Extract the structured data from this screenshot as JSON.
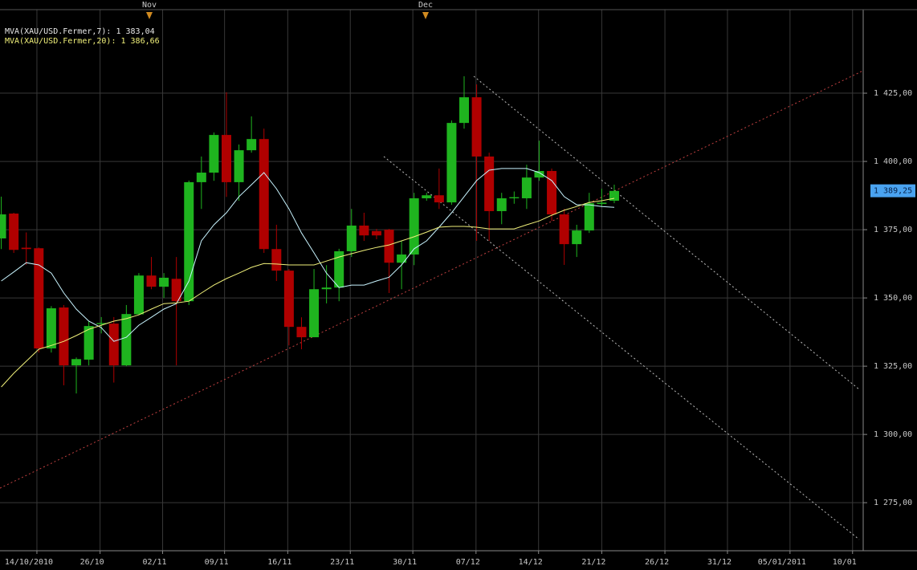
{
  "chart_data": {
    "type": "candlestick",
    "open": [
      1371.8,
      1380.9,
      1368.4,
      1368.2,
      1331.5,
      1346.5,
      1325.3,
      1327.4,
      1340.4,
      1340.6,
      1325.3,
      1344.0,
      1358.2,
      1354.1,
      1357.0,
      1348.8,
      1392.4,
      1395.9,
      1409.7,
      1392.4,
      1404.1,
      1408.2,
      1367.9,
      1360.0,
      1339.4,
      1335.6,
      1353.2,
      1353.8,
      1367.1,
      1376.5,
      1374.5,
      1375.0,
      1362.9,
      1365.9,
      1386.5,
      1387.6,
      1385.0,
      1414.1,
      1423.5,
      1401.8,
      1381.8,
      1386.5,
      1386.5,
      1394.1,
      1396.5,
      1380.6,
      1369.7,
      1374.7,
      1384.4,
      1385.6
    ],
    "high": [
      1387.1,
      1381.2,
      1374.0,
      1368.5,
      1347.0,
      1347.4,
      1328.2,
      1341.5,
      1343.0,
      1343.0,
      1347.4,
      1359.1,
      1365.0,
      1359.1,
      1365.0,
      1393.0,
      1401.8,
      1410.6,
      1425.3,
      1406.2,
      1416.5,
      1412.0,
      1376.8,
      1360.6,
      1342.9,
      1360.6,
      1362.0,
      1368.0,
      1382.6,
      1381.2,
      1375.3,
      1375.3,
      1370.9,
      1388.5,
      1388.5,
      1397.4,
      1415.0,
      1431.2,
      1428.2,
      1403.2,
      1388.5,
      1389.0,
      1398.8,
      1407.6,
      1397.4,
      1382.6,
      1376.8,
      1388.5,
      1390.0,
      1391.5
    ],
    "low": [
      1367.9,
      1366.5,
      1362.1,
      1330.0,
      1330.0,
      1318.0,
      1315.0,
      1325.3,
      1337.0,
      1319.0,
      1325.0,
      1343.8,
      1353.2,
      1350.0,
      1325.3,
      1347.4,
      1382.6,
      1392.9,
      1387.0,
      1385.6,
      1403.2,
      1366.5,
      1356.2,
      1332.6,
      1331.2,
      1335.6,
      1348.0,
      1348.8,
      1365.0,
      1370.9,
      1371.5,
      1351.8,
      1353.2,
      1362.0,
      1385.6,
      1382.6,
      1384.1,
      1412.0,
      1370.9,
      1370.9,
      1377.0,
      1384.5,
      1382.6,
      1392.9,
      1378.2,
      1362.1,
      1365.0,
      1373.8,
      1383.5,
      1384.7
    ],
    "close": [
      1380.6,
      1367.6,
      1367.9,
      1331.5,
      1346.2,
      1325.3,
      1327.6,
      1339.7,
      1340.8,
      1325.3,
      1344.1,
      1358.2,
      1354.1,
      1357.4,
      1348.8,
      1392.4,
      1395.9,
      1409.7,
      1392.4,
      1404.1,
      1408.2,
      1367.9,
      1360.0,
      1339.4,
      1335.6,
      1353.2,
      1353.8,
      1367.1,
      1376.5,
      1372.9,
      1372.9,
      1362.9,
      1365.9,
      1386.5,
      1387.6,
      1385.0,
      1414.1,
      1423.5,
      1401.8,
      1381.8,
      1386.5,
      1386.9,
      1394.1,
      1396.5,
      1380.6,
      1369.7,
      1374.7,
      1384.7,
      1384.9,
      1389.2
    ],
    "up_color": "#1fb41f",
    "down_color": "#b00000",
    "moving_averages": [
      {
        "name": "MVA(XAU/USD.Fermer,7): 1 383,04",
        "color": "#c8f4ff",
        "values": [
          1356.2,
          1359.5,
          1362.9,
          1362.1,
          1359.1,
          1351.8,
          1345.9,
          1341.5,
          1339.1,
          1334.1,
          1335.6,
          1340.0,
          1342.9,
          1345.9,
          1347.9,
          1356.2,
          1370.9,
          1376.8,
          1381.2,
          1387.1,
          1391.5,
          1395.9,
          1390.0,
          1382.6,
          1373.8,
          1366.5,
          1359.1,
          1353.8,
          1354.7,
          1354.7,
          1356.2,
          1357.6,
          1362.1,
          1368.0,
          1370.9,
          1375.9,
          1381.2,
          1387.1,
          1393.0,
          1396.8,
          1397.4,
          1397.4,
          1397.4,
          1395.9,
          1393.0,
          1387.1,
          1384.1,
          1384.1,
          1383.5,
          1383.2
        ]
      },
      {
        "name": "MVA(XAU/USD.Fermer,20): 1 386,66",
        "color": "#f0f07a",
        "values": [
          1317.4,
          1322.4,
          1326.8,
          1331.2,
          1332.6,
          1334.1,
          1336.2,
          1338.5,
          1340.0,
          1341.5,
          1342.4,
          1343.8,
          1345.9,
          1347.9,
          1348.2,
          1348.8,
          1351.8,
          1354.7,
          1357.1,
          1359.1,
          1361.2,
          1362.6,
          1362.4,
          1362.1,
          1362.1,
          1362.1,
          1363.5,
          1365.0,
          1366.2,
          1367.4,
          1368.5,
          1369.4,
          1370.9,
          1372.4,
          1374.1,
          1375.9,
          1376.2,
          1376.2,
          1375.9,
          1375.3,
          1375.3,
          1375.3,
          1376.8,
          1378.2,
          1380.3,
          1382.1,
          1383.5,
          1385.0,
          1385.6,
          1386.5
        ]
      }
    ],
    "xlim": [
      -0.1,
      68.9
    ],
    "xticks": [
      {
        "value": 2.85,
        "label": "14/10/2010"
      },
      {
        "value": 7.9,
        "label": "26/10"
      },
      {
        "value": 12.9,
        "label": "02/11"
      },
      {
        "value": 17.85,
        "label": "09/11"
      },
      {
        "value": 22.9,
        "label": "16/11"
      },
      {
        "value": 27.9,
        "label": "23/11"
      },
      {
        "value": 32.9,
        "label": "30/11"
      },
      {
        "value": 37.95,
        "label": "07/12"
      },
      {
        "value": 42.95,
        "label": "14/12"
      },
      {
        "value": 48.0,
        "label": "21/12"
      },
      {
        "value": 53.05,
        "label": "26/12"
      },
      {
        "value": 58.05,
        "label": "31/12"
      },
      {
        "value": 63.05,
        "label": "05/01/2011"
      },
      {
        "value": 68.05,
        "label": "10/01"
      }
    ],
    "ylim": [
      1257.4,
      1455.6
    ],
    "yticks": [
      {
        "value": 1275,
        "label": "1 275,00"
      },
      {
        "value": 1300,
        "label": "1 300,00"
      },
      {
        "value": 1325,
        "label": "1 325,00"
      },
      {
        "value": 1350,
        "label": "1 350,00"
      },
      {
        "value": 1375,
        "label": "1 375,00"
      },
      {
        "value": 1400,
        "label": "1 400,00"
      },
      {
        "value": 1425,
        "label": "1 425,00"
      }
    ],
    "grid": true,
    "last_price": {
      "value": 1389.25,
      "label": "1 389,25"
    },
    "month_markers": [
      "Nov",
      "Dec"
    ]
  }
}
